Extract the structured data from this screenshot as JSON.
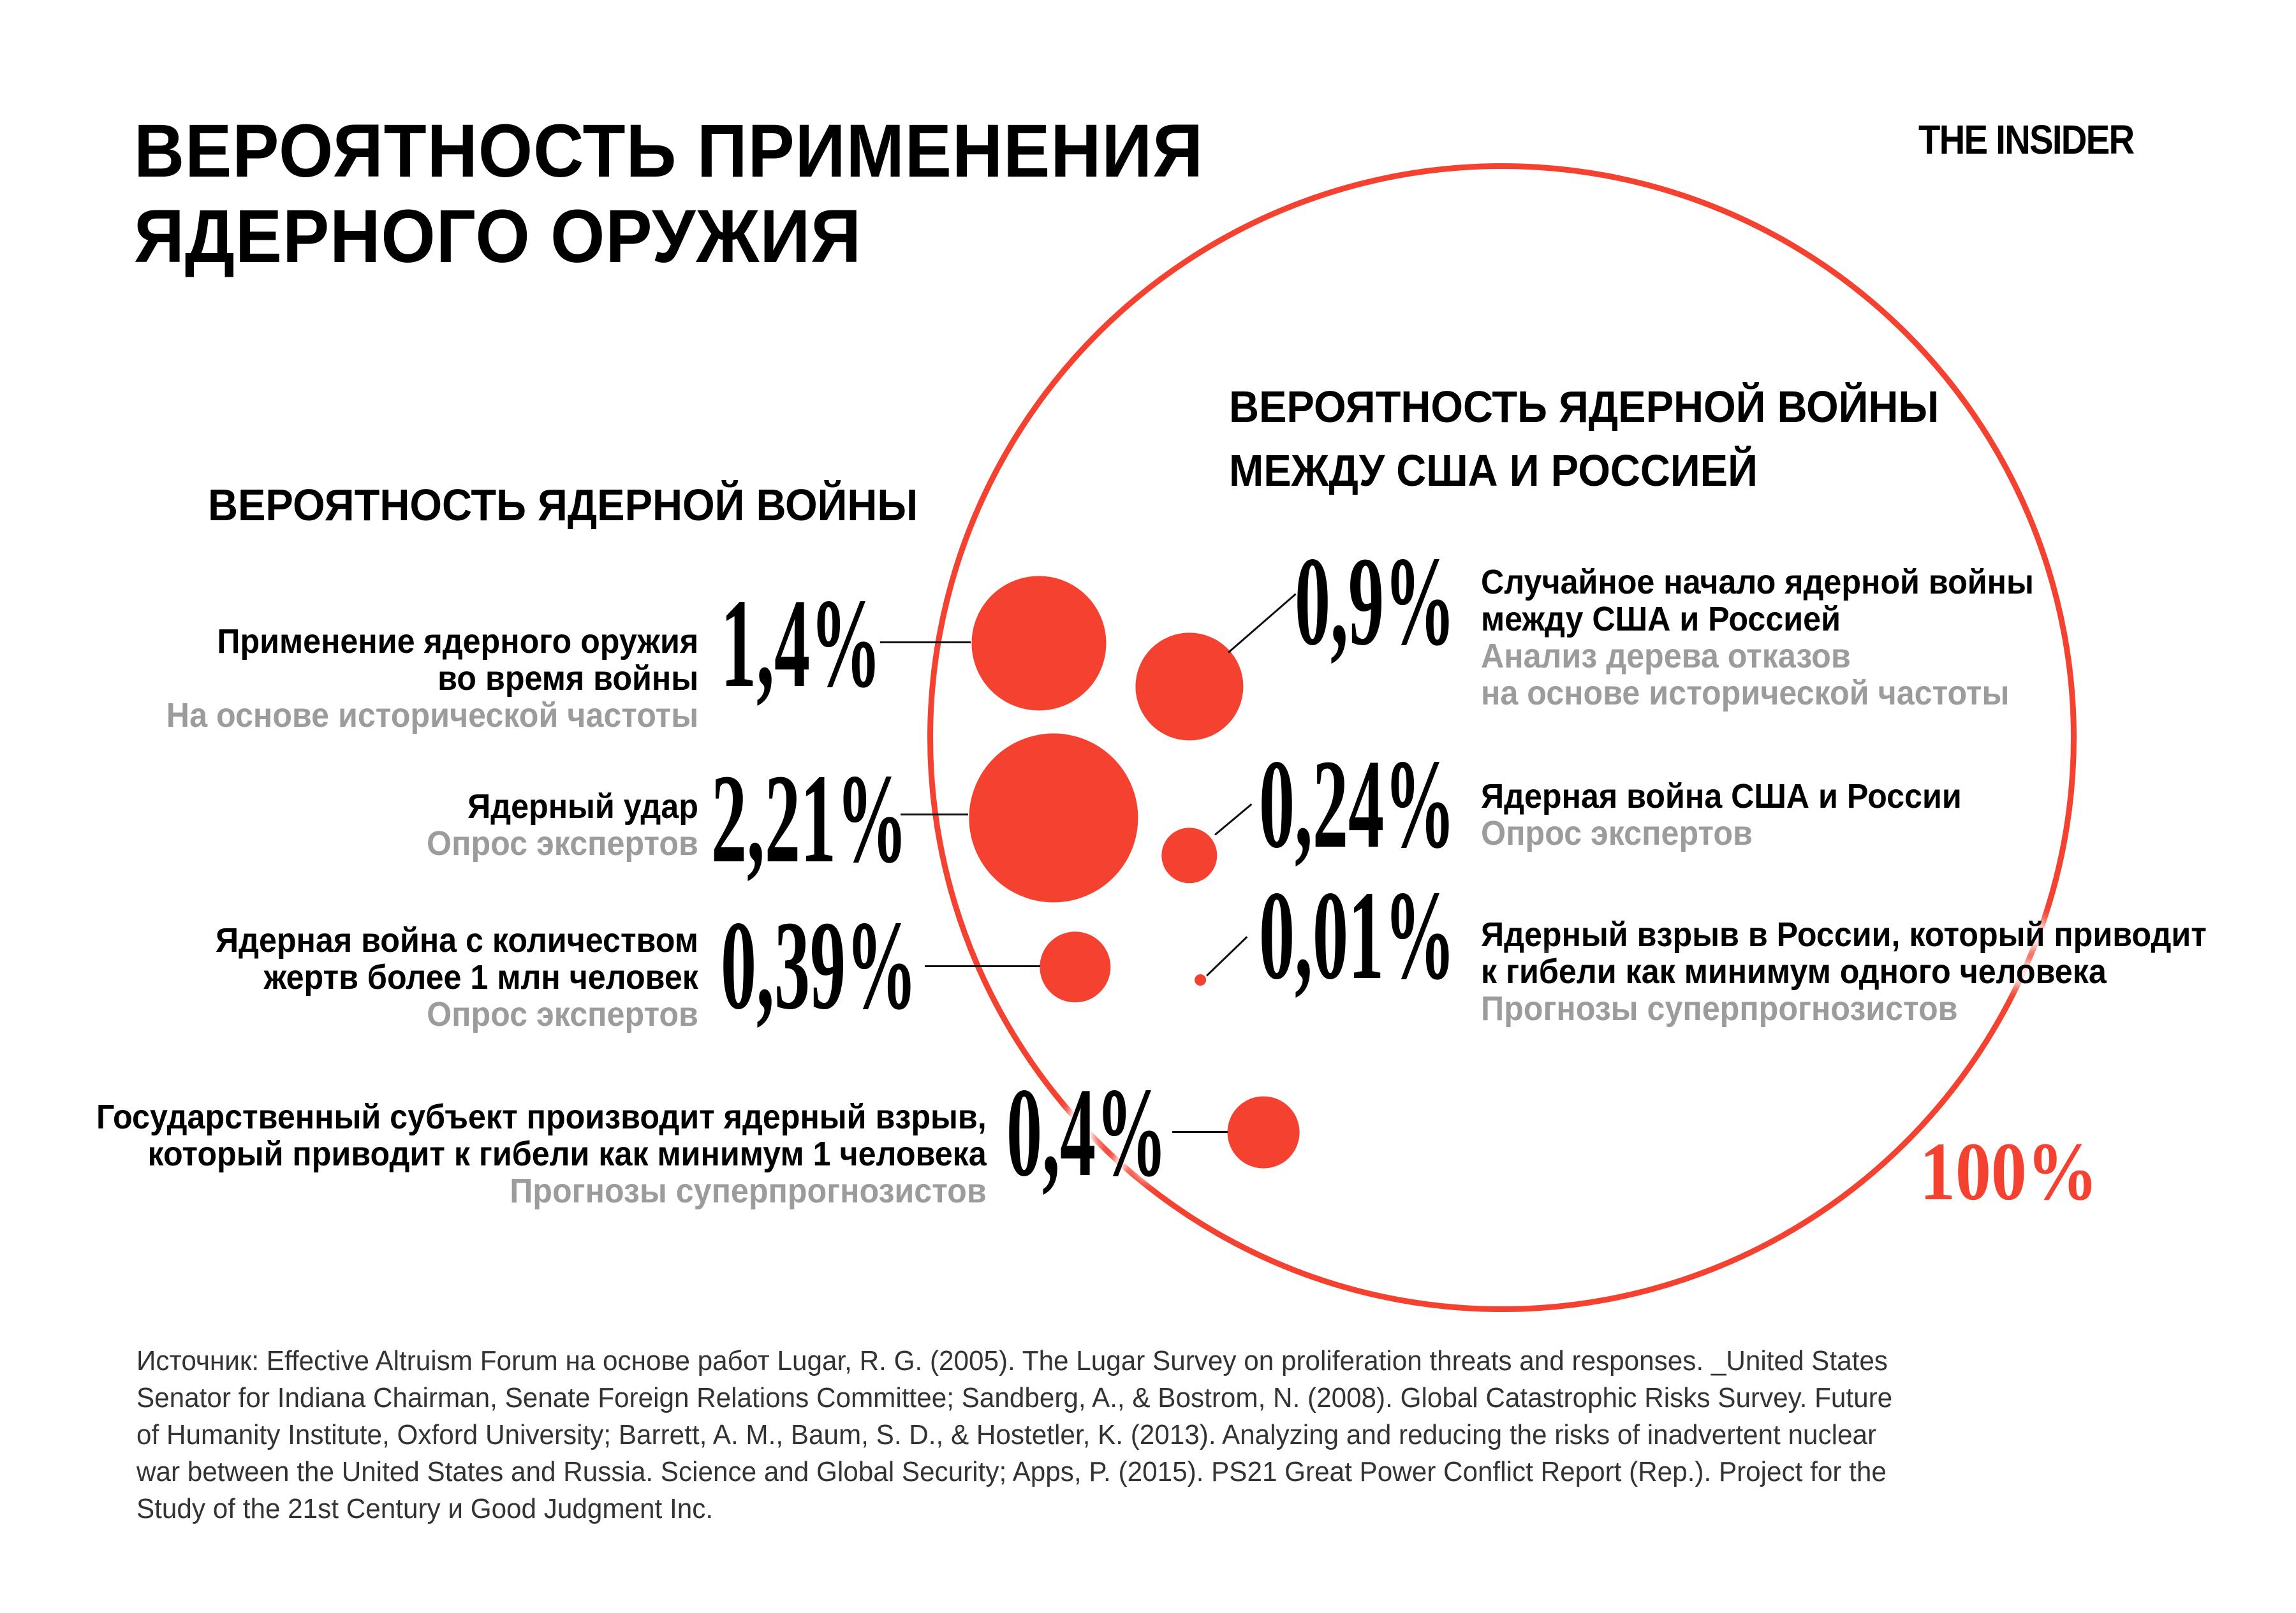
{
  "branding": {
    "logo": "THE INSIDER"
  },
  "colors": {
    "accent_red": "#f44130",
    "label_gray": "#9c9c9c",
    "text_black": "#000000",
    "source_text": "#333333"
  },
  "chart_data": {
    "type": "bubble",
    "title": "ВЕРОЯТНОСТЬ ПРИМЕНЕНИЯ ЯДЕРНОГО ОРУЖИЯ",
    "title_lines": [
      "ВЕРОЯТНОСТЬ ПРИМЕНЕНИЯ",
      "ЯДЕРНОГО ОРУЖИЯ"
    ],
    "unit": "%",
    "grid": false,
    "legend_position": "none",
    "outer_circle": {
      "label": "100%",
      "value_pct": 100,
      "radius_px": 892
    },
    "groups": [
      {
        "header_lines": [
          "ВЕРОЯТНОСТЬ ЯДЕРНОЙ ВОЙНЫ"
        ],
        "items": [
          {
            "value_pct": 1.4,
            "value_label": "1,4%",
            "label_lines": [
              "Применение ядерного оружия",
              "во время войны"
            ],
            "method_lines": [
              "На основе исторической частоты"
            ]
          },
          {
            "value_pct": 2.21,
            "value_label": "2,21%",
            "label_lines": [
              "Ядерный удар"
            ],
            "method_lines": [
              "Опрос экспертов"
            ]
          },
          {
            "value_pct": 0.39,
            "value_label": "0,39%",
            "label_lines": [
              "Ядерная война с количеством",
              "жертв более 1 млн человек"
            ],
            "method_lines": [
              "Опрос экспертов"
            ]
          },
          {
            "value_pct": 0.4,
            "value_label": "0,4%",
            "label_lines": [
              "Государственный субъект производит ядерный взрыв,",
              "который приводит к гибели как минимум 1 человека"
            ],
            "method_lines": [
              "Прогнозы суперпрогнозистов"
            ]
          }
        ]
      },
      {
        "header_lines": [
          "ВЕРОЯТНОСТЬ ЯДЕРНОЙ ВОЙНЫ",
          "МЕЖДУ США И РОССИЕЙ"
        ],
        "items": [
          {
            "value_pct": 0.9,
            "value_label": "0,9%",
            "label_lines": [
              "Случайное начало ядерной войны",
              "между США и Россией"
            ],
            "method_lines": [
              "Анализ дерева отказов",
              "на основе исторической частоты"
            ]
          },
          {
            "value_pct": 0.24,
            "value_label": "0,24%",
            "label_lines": [
              "Ядерная война США и России"
            ],
            "method_lines": [
              "Опрос экспертов"
            ]
          },
          {
            "value_pct": 0.01,
            "value_label": "0,01%",
            "label_lines": [
              "Ядерный взрыв в России, который приводит",
              "к гибели как минимум одного человека"
            ],
            "method_lines": [
              "Прогнозы суперпрогнозистов"
            ]
          }
        ]
      }
    ]
  },
  "footer": {
    "source_lines": [
      "Источник: Effective Altruism Forum на основе работ Lugar, R. G. (2005). The Lugar Survey on proliferation threats and responses. _United States",
      "Senator for Indiana Chairman, Senate Foreign Relations Committee; Sandberg, A., & Bostrom, N. (2008). Global Catastrophic Risks Survey. Future",
      "of Humanity Institute, Oxford University; Barrett, A. M., Baum, S. D., & Hostetler, K. (2013). Analyzing and reducing the risks of inadvertent nuclear",
      "war between the United States and Russia. Science and Global Security; Apps, P. (2015). PS21 Great Power Conflict Report (Rep.). Project for the",
      "Study of the 21st Century и Good Judgment Inc."
    ]
  }
}
